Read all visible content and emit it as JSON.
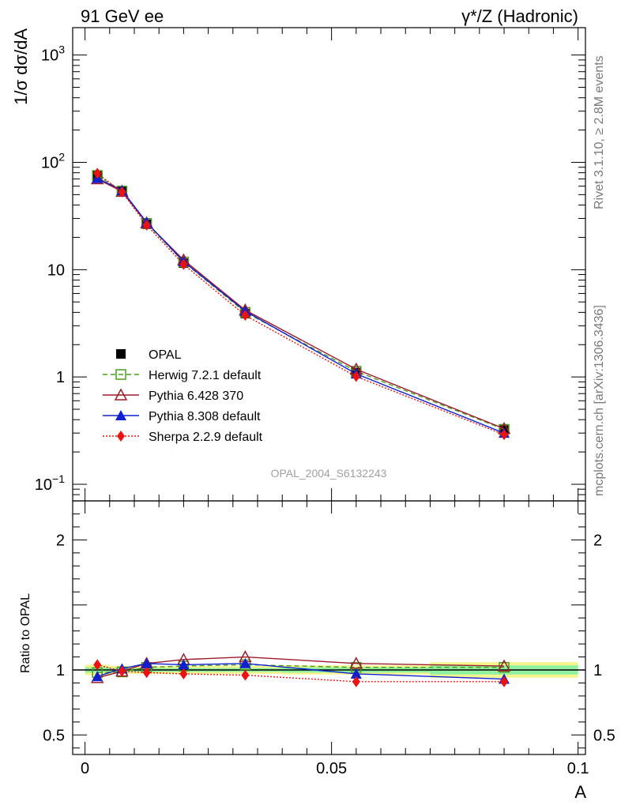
{
  "header": {
    "left_title": "91 GeV ee",
    "right_title": "γ*/Z (Hadronic)"
  },
  "side_labels": {
    "rivet": "Rivet 3.1.10, ≥ 2.8M events",
    "mcplots": "mcplots.cern.ch [arXiv:1306.3436]"
  },
  "watermark": "OPAL_2004_S6132243",
  "colors": {
    "opal": "#000000",
    "herwig": "#4a9e1e",
    "pythia6": "#9b1c2a",
    "pythia8": "#1020d0",
    "sherpa": "#ee1111",
    "band_yellow": "#f5f590",
    "band_green": "#8ef0a0"
  },
  "chart_data": [
    {
      "type": "line",
      "title": "",
      "ylabel": "1/σ dσ/dA",
      "xlabel": "",
      "yscale": "log",
      "ylim": [
        0.07,
        1800
      ],
      "xlim": [
        -0.0025,
        0.1015
      ],
      "y_ticks": [
        {
          "value": 0.1,
          "base": "10",
          "exp": "−1"
        },
        {
          "value": 1,
          "label": "1"
        },
        {
          "value": 10,
          "label": "10"
        },
        {
          "value": 100,
          "base": "10",
          "exp": "2"
        },
        {
          "value": 1000,
          "base": "10",
          "exp": "3"
        }
      ],
      "x": [
        0.0025,
        0.0075,
        0.0125,
        0.02,
        0.0325,
        0.055,
        0.085
      ],
      "legend_position": "center-left",
      "series": [
        {
          "name": "OPAL",
          "key": "opal",
          "values": [
            75,
            54,
            26.5,
            11.5,
            3.9,
            1.1,
            0.32
          ],
          "marker": "square-filled",
          "line": "none"
        },
        {
          "name": "Herwig 7.2.1 default",
          "key": "herwig",
          "values": [
            75.5,
            54,
            27,
            11.8,
            4.0,
            1.13,
            0.325
          ],
          "marker": "square-open",
          "line": "dashed"
        },
        {
          "name": "Pythia 6.428 370",
          "key": "pythia6",
          "values": [
            70,
            53.5,
            27.3,
            12.3,
            4.2,
            1.18,
            0.33
          ],
          "marker": "triangle-open",
          "line": "solid"
        },
        {
          "name": "Pythia 8.308 default",
          "key": "pythia8",
          "values": [
            71,
            55,
            27.6,
            11.9,
            4.1,
            1.07,
            0.3
          ],
          "marker": "triangle-filled",
          "line": "solid"
        },
        {
          "name": "Sherpa 2.2.9 default",
          "key": "sherpa",
          "values": [
            79,
            53,
            26,
            11.2,
            3.75,
            1.01,
            0.29
          ],
          "marker": "diamond-filled",
          "line": "dotted"
        }
      ]
    },
    {
      "type": "line",
      "ylabel": "Ratio to OPAL",
      "xlabel": "A",
      "ylim": [
        0.35,
        2.3
      ],
      "xlim": [
        -0.0025,
        0.1015
      ],
      "y_ticks": [
        {
          "value": 0.5,
          "label": "0.5"
        },
        {
          "value": 1,
          "label": "1"
        },
        {
          "value": 2,
          "label": "2"
        }
      ],
      "x_ticks": [
        {
          "value": 0,
          "label": "0"
        },
        {
          "value": 0.05,
          "label": "0.05"
        },
        {
          "value": 0.1,
          "label": "0.1"
        }
      ],
      "x": [
        0.0025,
        0.0075,
        0.0125,
        0.02,
        0.0325,
        0.055,
        0.085
      ],
      "uncertainty_bands": {
        "edges": [
          0,
          0.005,
          0.01,
          0.015,
          0.025,
          0.04,
          0.07,
          0.1
        ],
        "yellow_half_width": [
          0.04,
          0.03,
          0.03,
          0.03,
          0.03,
          0.035,
          0.06
        ],
        "green_half_width": [
          0.02,
          0.015,
          0.015,
          0.015,
          0.015,
          0.02,
          0.035
        ]
      },
      "series": [
        {
          "name": "Herwig 7.2.1 default",
          "key": "herwig",
          "values": [
            0.98,
            0.985,
            1.02,
            1.03,
            1.04,
            1.02,
            1.02
          ]
        },
        {
          "name": "Pythia 6.428 370",
          "key": "pythia6",
          "values": [
            0.94,
            0.99,
            1.05,
            1.08,
            1.1,
            1.05,
            1.03
          ]
        },
        {
          "name": "Pythia 8.308 default",
          "key": "pythia8",
          "values": [
            0.95,
            1.01,
            1.05,
            1.04,
            1.05,
            0.97,
            0.93
          ]
        },
        {
          "name": "Sherpa 2.2.9 default",
          "key": "sherpa",
          "values": [
            1.04,
            0.99,
            0.98,
            0.97,
            0.96,
            0.91,
            0.91
          ]
        }
      ]
    }
  ]
}
